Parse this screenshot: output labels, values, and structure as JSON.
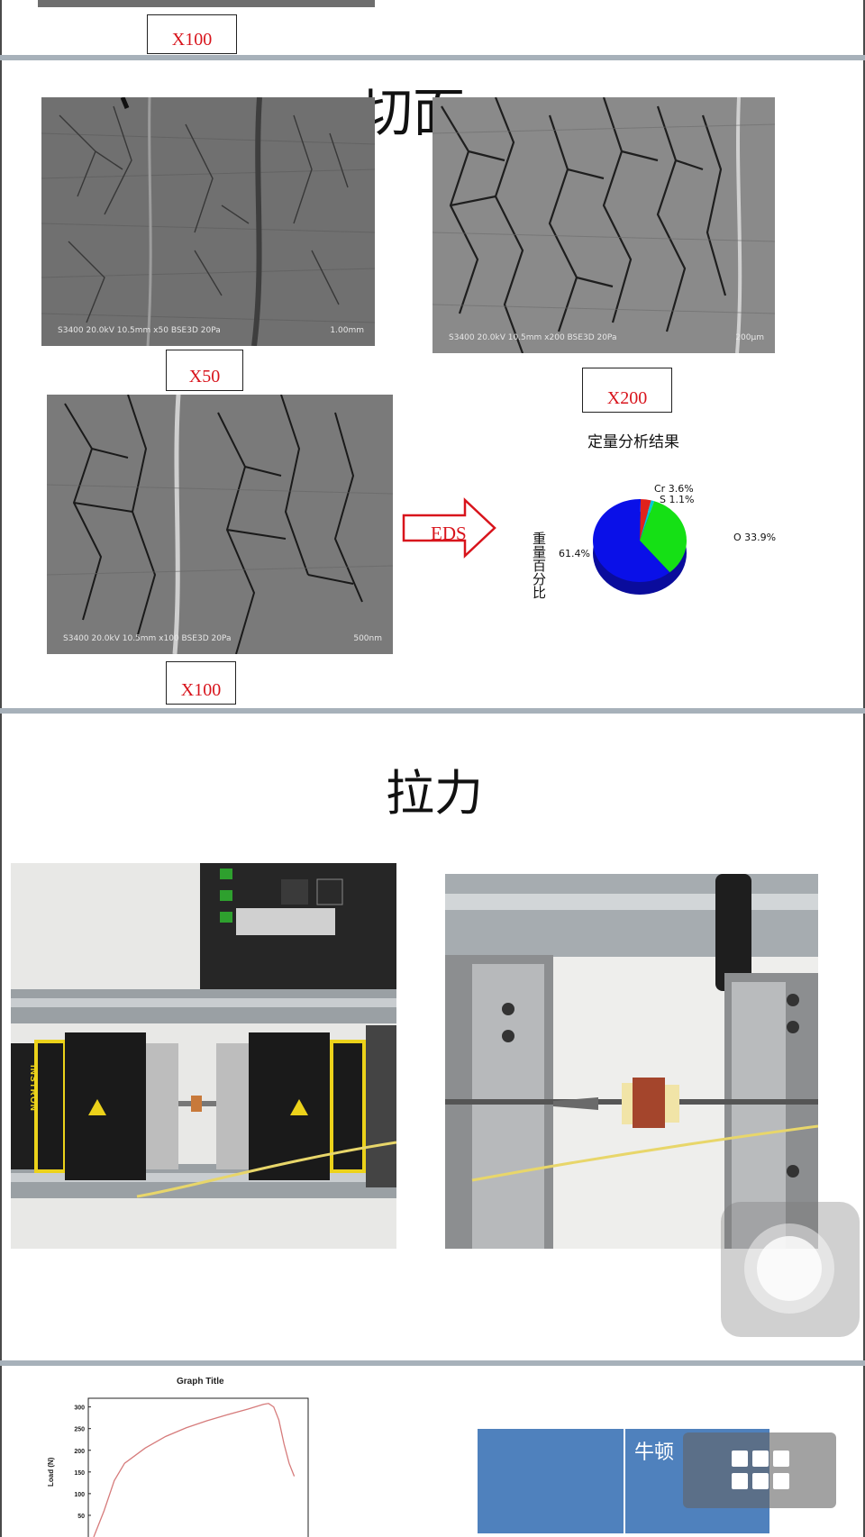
{
  "slide1": {
    "mag_label": "X100"
  },
  "slide2": {
    "title": "切面",
    "sem_x50": {
      "caption": "S3400 20.0kV 10.5mm x50 BSE3D 20Pa",
      "scale": "1.00mm",
      "label": "X50"
    },
    "sem_x200": {
      "caption": "S3400 20.0kV 10.5mm x200 BSE3D 20Pa",
      "scale": "200μm",
      "label": "X200"
    },
    "sem_x100": {
      "caption": "S3400 20.0kV 10.5mm x100 BSE3D 20Pa",
      "scale": "500nm",
      "label": "X100"
    },
    "arrow_label": "EDS",
    "chart_data": {
      "type": "pie",
      "title": "定量分析结果",
      "ylabel": "重量百分比",
      "categories": [
        "Cr",
        "S",
        "O",
        ""
      ],
      "values": [
        3.6,
        1.1,
        33.9,
        61.4
      ],
      "labels": [
        "Cr 3.6%",
        "S 1.1%",
        "O 33.9%",
        "61.4%"
      ],
      "colors": [
        "#e0221c",
        "#00c8d6",
        "#15e015",
        "#0a10e8"
      ],
      "style": "3d"
    }
  },
  "slide3": {
    "title": "拉力",
    "photo_left_brand": "INSTRON"
  },
  "slide4": {
    "chart_data": {
      "type": "line",
      "title": "Graph Title",
      "ylabel": "Load (N)",
      "yticks": [
        50,
        100,
        150,
        200,
        250,
        300
      ],
      "ylim": [
        0,
        320
      ],
      "x": [
        0,
        2,
        4,
        6,
        10,
        14,
        18,
        22,
        26,
        30,
        33,
        34,
        35,
        36,
        37,
        38,
        39
      ],
      "y": [
        0,
        60,
        130,
        170,
        205,
        232,
        252,
        268,
        282,
        295,
        306,
        308,
        300,
        270,
        215,
        170,
        140
      ],
      "color": "#d67b7b"
    },
    "table": {
      "header": "牛顿",
      "color": "#4f81bd"
    }
  },
  "overlays": {
    "assistive_touch": "assistive-touch",
    "grid_icon": "grid-icon",
    "accent": "#8a8a8a"
  }
}
